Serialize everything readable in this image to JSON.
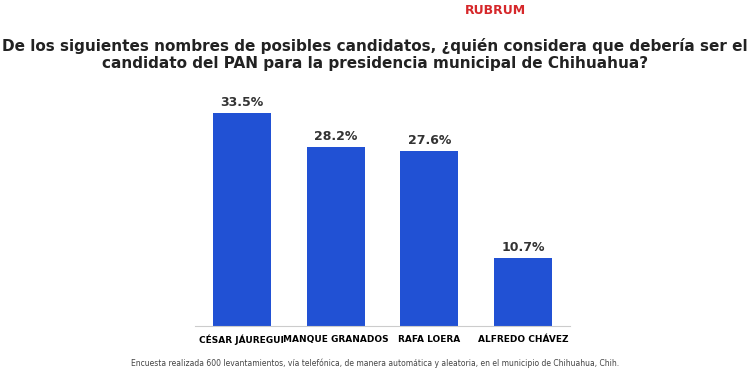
{
  "chart_data": {
    "type": "bar",
    "title": "De los siguientes nombres de posibles candidatos, ¿quién considera que debería ser el candidato del PAN para la presidencia municipal de Chihuahua?",
    "source": "RUBRUM",
    "annotations": [
      "Encuesta realizada 600 levantamientos, vía telefónica, de manera automática y aleatoria, en el municipio de Chihuahua, Chih."
    ],
    "categories": [
      "CÉSAR JÁUREGUI",
      "MANQUE GRANADOS",
      "RAFA LOERA",
      "ALFREDO CHÁVEZ"
    ],
    "values": [
      33.5,
      28.2,
      27.6,
      10.7
    ],
    "value_labels": [
      "33.5%",
      "28.2%",
      "27.6%",
      "10.7%"
    ],
    "data_labels": true,
    "color": "#2151d4",
    "ylim": [
      0,
      36
    ],
    "tick_labels": "x",
    "grid": false
  }
}
